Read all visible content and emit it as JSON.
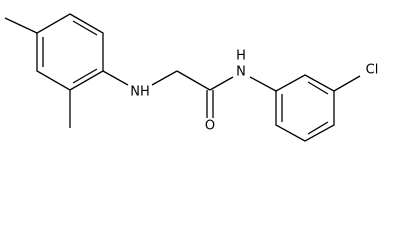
{
  "atoms": {
    "amine": "NH",
    "amide_n": "N",
    "amide_h": "H",
    "oxygen": "O",
    "chlorine": "Cl"
  }
}
